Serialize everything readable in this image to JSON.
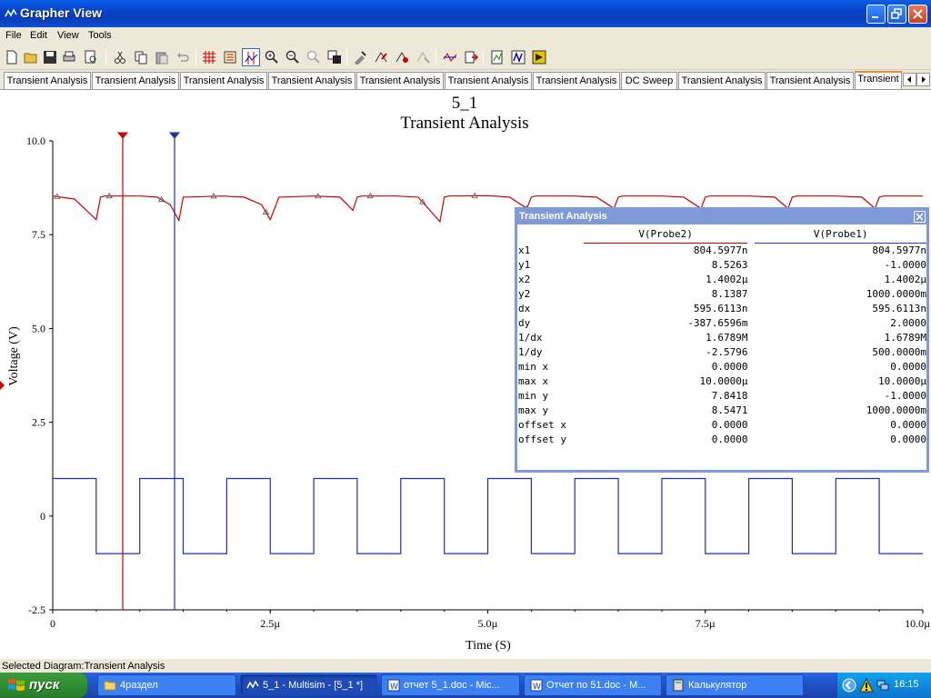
{
  "window": {
    "title": "Grapher View"
  },
  "menu": [
    "File",
    "Edit",
    "View",
    "Tools"
  ],
  "tabs": [
    "Transient Analysis",
    "Transient Analysis",
    "Transient Analysis",
    "Transient Analysis",
    "Transient Analysis",
    "Transient Analysis",
    "Transient Analysis",
    "DC Sweep",
    "Transient Analysis",
    "Transient Analysis",
    "Transient"
  ],
  "chart_data": {
    "type": "line",
    "title": "5_1",
    "subtitle": "Transient Analysis",
    "xlabel": "Time (S)",
    "ylabel": "Voltage (V)",
    "xlim": [
      0,
      10.0
    ],
    "ylim": [
      -2.5,
      10.0
    ],
    "x_unit": "µs",
    "xticks": [
      "0",
      "2.5µ",
      "5.0µ",
      "7.5µ",
      "10.0µ"
    ],
    "yticks": [
      "-2.5",
      "0",
      "2.5",
      "5.0",
      "7.5",
      "10.0"
    ],
    "grid": false,
    "series": [
      {
        "name": "V(Probe2)",
        "color": "#cc0000",
        "marker": "triangle",
        "x": [
          0,
          0.25,
          0.5,
          0.55,
          0.6,
          1.0,
          1.2,
          1.35,
          1.45,
          1.5,
          1.95,
          2.2,
          2.4,
          2.5,
          2.6,
          3.0,
          3.3,
          3.45,
          3.5,
          3.55,
          3.95,
          4.2,
          4.45,
          4.5,
          4.55,
          5.0,
          5.25,
          5.45,
          5.5,
          5.55,
          6.0,
          6.25,
          6.45,
          6.5,
          6.55,
          7.0,
          7.25,
          7.45,
          7.5,
          7.55,
          8.0,
          8.3,
          8.45,
          8.5,
          8.55,
          9.0,
          9.3,
          9.45,
          9.5,
          9.55,
          10.0
        ],
        "y": [
          8.53,
          8.45,
          7.9,
          8.5,
          8.53,
          8.53,
          8.5,
          8.3,
          7.88,
          8.5,
          8.53,
          8.5,
          8.3,
          7.9,
          8.5,
          8.53,
          8.5,
          8.15,
          8.5,
          8.53,
          8.53,
          8.5,
          7.85,
          8.5,
          8.53,
          8.54,
          8.5,
          8.2,
          8.5,
          8.53,
          8.53,
          8.5,
          8.2,
          8.5,
          8.53,
          8.53,
          8.5,
          8.2,
          8.5,
          8.53,
          8.53,
          8.5,
          8.2,
          8.5,
          8.53,
          8.53,
          8.5,
          8.2,
          8.5,
          8.53,
          8.53
        ]
      },
      {
        "name": "V(Probe1)",
        "color": "#1f2fb0",
        "marker": "none",
        "x": [
          0,
          0.5,
          0.5,
          1.0,
          1.0,
          1.5,
          1.5,
          2.0,
          2.0,
          2.5,
          2.5,
          3.0,
          3.0,
          3.5,
          3.5,
          4.0,
          4.0,
          4.5,
          4.5,
          5.0,
          5.0,
          5.5,
          5.5,
          6.0,
          6.0,
          6.5,
          6.5,
          7.0,
          7.0,
          7.5,
          7.5,
          8.0,
          8.0,
          8.5,
          8.5,
          9.0,
          9.0,
          9.5,
          9.5,
          10.0
        ],
        "y": [
          1,
          1,
          -1,
          -1,
          1,
          1,
          -1,
          -1,
          1,
          1,
          -1,
          -1,
          1,
          1,
          -1,
          -1,
          1,
          1,
          -1,
          -1,
          1,
          1,
          -1,
          -1,
          1,
          1,
          -1,
          -1,
          1,
          1,
          -1,
          -1,
          1,
          1,
          -1,
          -1,
          1,
          1,
          -1,
          -1
        ]
      }
    ],
    "cursors": [
      {
        "name": "cursor-1",
        "x": 0.8046,
        "color": "#cc0000"
      },
      {
        "name": "cursor-2",
        "x": 1.4002,
        "color": "#1f2fb0"
      }
    ]
  },
  "cursor_window": {
    "title": "Transient Analysis",
    "columns": [
      "V(Probe2)",
      "V(Probe1)"
    ],
    "rows": [
      {
        "label": "x1",
        "v1": "804.5977n",
        "v2": "804.5977n"
      },
      {
        "label": "y1",
        "v1": "8.5263",
        "v2": "-1.0000"
      },
      {
        "label": "x2",
        "v1": "1.4002µ",
        "v2": "1.4002µ"
      },
      {
        "label": "y2",
        "v1": "8.1387",
        "v2": "1000.0000m"
      },
      {
        "label": "dx",
        "v1": "595.6113n",
        "v2": "595.6113n"
      },
      {
        "label": "dy",
        "v1": "-387.6596m",
        "v2": "2.0000"
      },
      {
        "label": "1/dx",
        "v1": "1.6789M",
        "v2": "1.6789M"
      },
      {
        "label": "1/dy",
        "v1": "-2.5796",
        "v2": "500.0000m"
      },
      {
        "label": "min x",
        "v1": "0.0000",
        "v2": "0.0000"
      },
      {
        "label": "max x",
        "v1": "10.0000µ",
        "v2": "10.0000µ"
      },
      {
        "label": "min y",
        "v1": "7.8418",
        "v2": "-1.0000"
      },
      {
        "label": "max y",
        "v1": "8.5471",
        "v2": "1000.0000m"
      },
      {
        "label": "offset x",
        "v1": "0.0000",
        "v2": "0.0000"
      },
      {
        "label": "offset y",
        "v1": "0.0000",
        "v2": "0.0000"
      }
    ]
  },
  "status": {
    "text": "Selected Diagram:Transient Analysis"
  },
  "taskbar": {
    "start_label": "пуск",
    "tasks": [
      "4раздел",
      "5_1 - Multisim - [5_1 *]",
      "отчет 5_1.doc - Mic...",
      "Отчет по 51.doc - M...",
      "Калькулятор"
    ],
    "clock": "16:15"
  }
}
